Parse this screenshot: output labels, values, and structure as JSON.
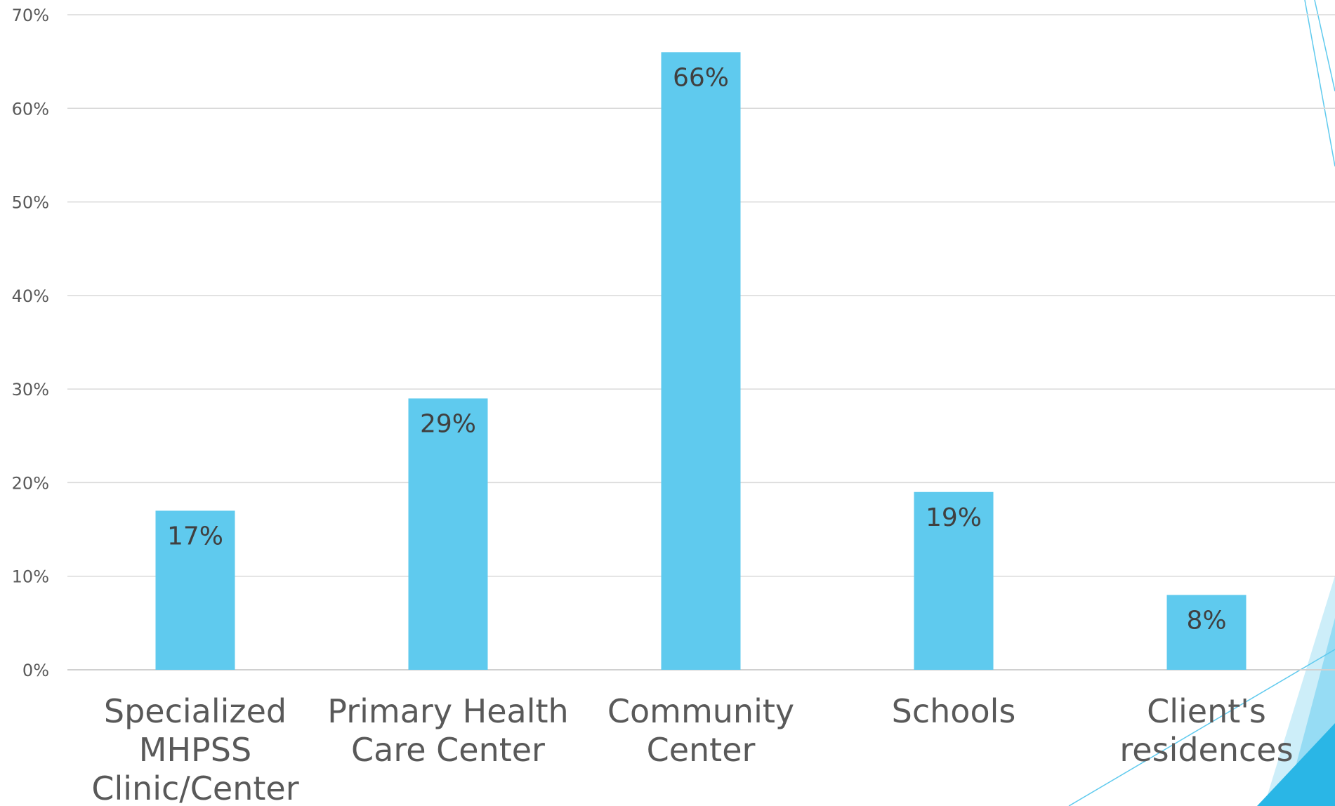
{
  "chart_data": {
    "type": "bar",
    "categories": [
      [
        "Specialized",
        "MHPSS",
        "Clinic/Center"
      ],
      [
        "Primary Health",
        "Care Center"
      ],
      [
        "Community",
        "Center"
      ],
      [
        "Schools"
      ],
      [
        "Client's",
        "residences"
      ]
    ],
    "values": [
      17,
      29,
      66,
      19,
      8
    ],
    "data_labels": [
      "17%",
      "29%",
      "66%",
      "19%",
      "8%"
    ],
    "ylim": [
      0,
      70
    ],
    "yticks": [
      0,
      10,
      20,
      30,
      40,
      50,
      60,
      70
    ],
    "ytick_labels": [
      "0%",
      "10%",
      "20%",
      "30%",
      "40%",
      "50%",
      "60%",
      "70%"
    ],
    "grid": true,
    "bar_color": "#5fcaee",
    "accent_color": "#2ab6e6"
  }
}
